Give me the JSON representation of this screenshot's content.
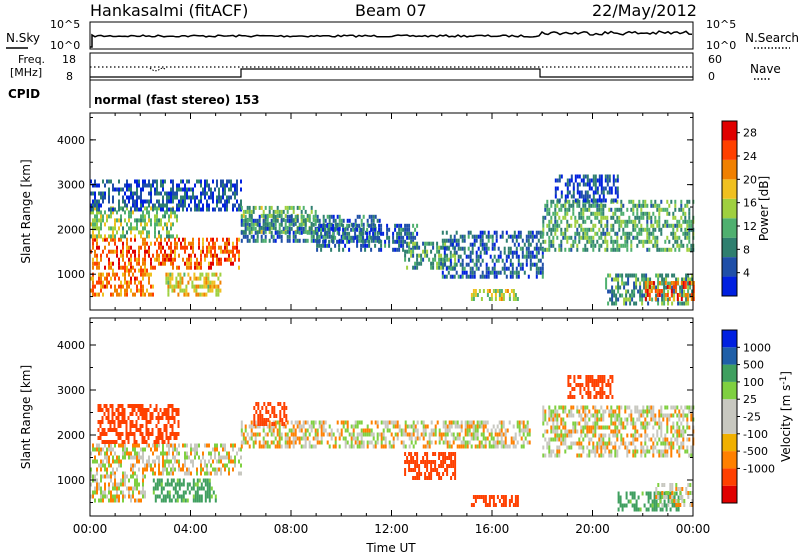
{
  "header": {
    "station": "Hankasalmi (fitACF)",
    "beam": "Beam 07",
    "date": "22/May/2012"
  },
  "noise_panel": {
    "left_label": "N.Sky",
    "right_label": "N.Search",
    "left_ticks": [
      "10^5",
      "10^0"
    ],
    "right_ticks": [
      "10^5",
      "10^0"
    ]
  },
  "freq_panel": {
    "left_label_line1": "Freq.",
    "left_label_line2": "[MHz]",
    "left_ticks": [
      "18",
      "8"
    ],
    "right_ticks": [
      "60",
      "0"
    ],
    "right_label": "Nave",
    "cpid_label": "CPID",
    "mode_text": "normal (fast stereo) 153"
  },
  "colors": {
    "power_scale": [
      "#0020e0",
      "#1f4fa8",
      "#2f7f6f",
      "#4fb06f",
      "#9fd040",
      "#f0c020",
      "#f08000",
      "#ff4000",
      "#e00000"
    ],
    "velocity_scale": [
      "#e00000",
      "#ff4000",
      "#ff8000",
      "#f0b000",
      "#c8c8c0",
      "#c8c8c0",
      "#7fd040",
      "#3f9f5f",
      "#1f5fa8",
      "#0020e0"
    ]
  },
  "chart_data": [
    {
      "type": "heatmap",
      "name": "power",
      "ylabel": "Slant Range [km]",
      "yticks": [
        "1000",
        "2000",
        "3000",
        "4000"
      ],
      "ylim": [
        200,
        4600
      ],
      "xlim_hours": [
        0,
        24
      ],
      "colorbar_label": "Power [dB]",
      "colorbar_ticks": [
        "4",
        "8",
        "12",
        "16",
        "20",
        "24",
        "28"
      ],
      "scale_range": [
        0,
        30
      ],
      "blobs": [
        {
          "t0": 0.0,
          "t1": 5.9,
          "r0": 1100,
          "r1": 1800,
          "v": 24
        },
        {
          "t0": 0.0,
          "t1": 3.5,
          "r0": 1800,
          "r1": 2500,
          "v": 14
        },
        {
          "t0": 0.0,
          "t1": 2.5,
          "r0": 500,
          "r1": 1100,
          "v": 22
        },
        {
          "t0": 3.0,
          "t1": 5.2,
          "r0": 500,
          "r1": 1000,
          "v": 18
        },
        {
          "t0": 0.0,
          "t1": 6.0,
          "r0": 2400,
          "r1": 3100,
          "v": 5
        },
        {
          "t0": 6.0,
          "t1": 9.0,
          "r0": 1900,
          "r1": 2500,
          "v": 12
        },
        {
          "t0": 6.0,
          "t1": 11.5,
          "r0": 1700,
          "r1": 2300,
          "v": 7
        },
        {
          "t0": 9.0,
          "t1": 13.0,
          "r0": 1500,
          "r1": 2100,
          "v": 6
        },
        {
          "t0": 12.5,
          "t1": 14.5,
          "r0": 1100,
          "r1": 1700,
          "v": 11
        },
        {
          "t0": 14.0,
          "t1": 18.0,
          "r0": 900,
          "r1": 1900,
          "v": 6
        },
        {
          "t0": 15.0,
          "t1": 17.0,
          "r0": 400,
          "r1": 600,
          "v": 16
        },
        {
          "t0": 18.0,
          "t1": 24.0,
          "r0": 1500,
          "r1": 2600,
          "v": 11
        },
        {
          "t0": 18.5,
          "t1": 21.0,
          "r0": 2600,
          "r1": 3200,
          "v": 5
        },
        {
          "t0": 20.5,
          "t1": 24.0,
          "r0": 300,
          "r1": 1000,
          "v": 10
        },
        {
          "t0": 22.0,
          "t1": 24.0,
          "r0": 400,
          "r1": 800,
          "v": 24
        }
      ]
    },
    {
      "type": "heatmap",
      "name": "velocity",
      "ylabel": "Slant Range [km]",
      "yticks": [
        "1000",
        "2000",
        "3000",
        "4000"
      ],
      "ylim": [
        200,
        4600
      ],
      "xlim_hours": [
        0,
        24
      ],
      "xticks": [
        "00:00",
        "04:00",
        "08:00",
        "12:00",
        "16:00",
        "20:00",
        "00:00"
      ],
      "xlabel": "Time UT",
      "colorbar_label": "Velocity [m s",
      "colorbar_label_sup": "-1",
      "colorbar_label_end": "]",
      "colorbar_ticks": [
        "1000",
        "500",
        "100",
        "25",
        "-25",
        "-100",
        "-500",
        "-1000"
      ],
      "blobs": [
        {
          "t0": 0.0,
          "t1": 6.0,
          "r0": 1100,
          "r1": 1800,
          "v": 0
        },
        {
          "t0": 0.3,
          "t1": 3.5,
          "r0": 1800,
          "r1": 2600,
          "v": -300
        },
        {
          "t0": 0.0,
          "t1": 2.2,
          "r0": 500,
          "r1": 1100,
          "v": 0
        },
        {
          "t0": 2.5,
          "t1": 5.0,
          "r0": 500,
          "r1": 1000,
          "v": 150
        },
        {
          "t0": 6.0,
          "t1": 17.5,
          "r0": 1700,
          "r1": 2300,
          "v": 0
        },
        {
          "t0": 6.5,
          "t1": 7.8,
          "r0": 2200,
          "r1": 2700,
          "v": -300
        },
        {
          "t0": 12.5,
          "t1": 14.5,
          "r0": 1000,
          "r1": 1600,
          "v": -300
        },
        {
          "t0": 15.0,
          "t1": 17.0,
          "r0": 400,
          "r1": 600,
          "v": -300
        },
        {
          "t0": 18.0,
          "t1": 24.0,
          "r0": 1500,
          "r1": 2600,
          "v": 0
        },
        {
          "t0": 19.0,
          "t1": 20.8,
          "r0": 2800,
          "r1": 3300,
          "v": -200
        },
        {
          "t0": 21.0,
          "t1": 23.5,
          "r0": 300,
          "r1": 700,
          "v": 150
        },
        {
          "t0": 22.5,
          "t1": 24.0,
          "r0": 400,
          "r1": 900,
          "v": 0
        }
      ]
    }
  ]
}
